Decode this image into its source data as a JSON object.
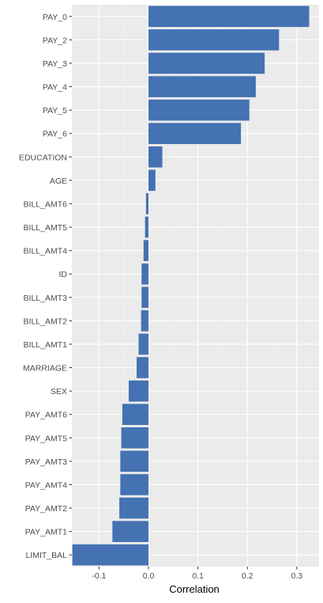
{
  "chart_data": {
    "type": "bar",
    "orientation": "horizontal",
    "xlabel": "Correlation",
    "ylabel": "",
    "xlim": [
      -0.155,
      0.345
    ],
    "x_ticks": [
      -0.1,
      0.0,
      0.1,
      0.2,
      0.3
    ],
    "x_tick_labels": [
      "-0.1",
      "0.0",
      "0.1",
      "0.2",
      "0.3"
    ],
    "grid": true,
    "bar_color": "#4472b2",
    "panel_background": "#ebebeb",
    "categories": [
      "PAY_0",
      "PAY_2",
      "PAY_3",
      "PAY_4",
      "PAY_5",
      "PAY_6",
      "EDUCATION",
      "AGE",
      "BILL_AMT6",
      "BILL_AMT5",
      "BILL_AMT4",
      "ID",
      "BILL_AMT3",
      "BILL_AMT2",
      "BILL_AMT1",
      "MARRIAGE",
      "SEX",
      "PAY_AMT6",
      "PAY_AMT5",
      "PAY_AMT3",
      "PAY_AMT4",
      "PAY_AMT2",
      "PAY_AMT1",
      "LIMIT_BAL"
    ],
    "values": [
      0.325,
      0.264,
      0.235,
      0.217,
      0.204,
      0.187,
      0.028,
      0.014,
      -0.005,
      -0.007,
      -0.01,
      -0.014,
      -0.014,
      -0.015,
      -0.02,
      -0.024,
      -0.04,
      -0.053,
      -0.055,
      -0.057,
      -0.057,
      -0.059,
      -0.073,
      -0.154
    ]
  }
}
